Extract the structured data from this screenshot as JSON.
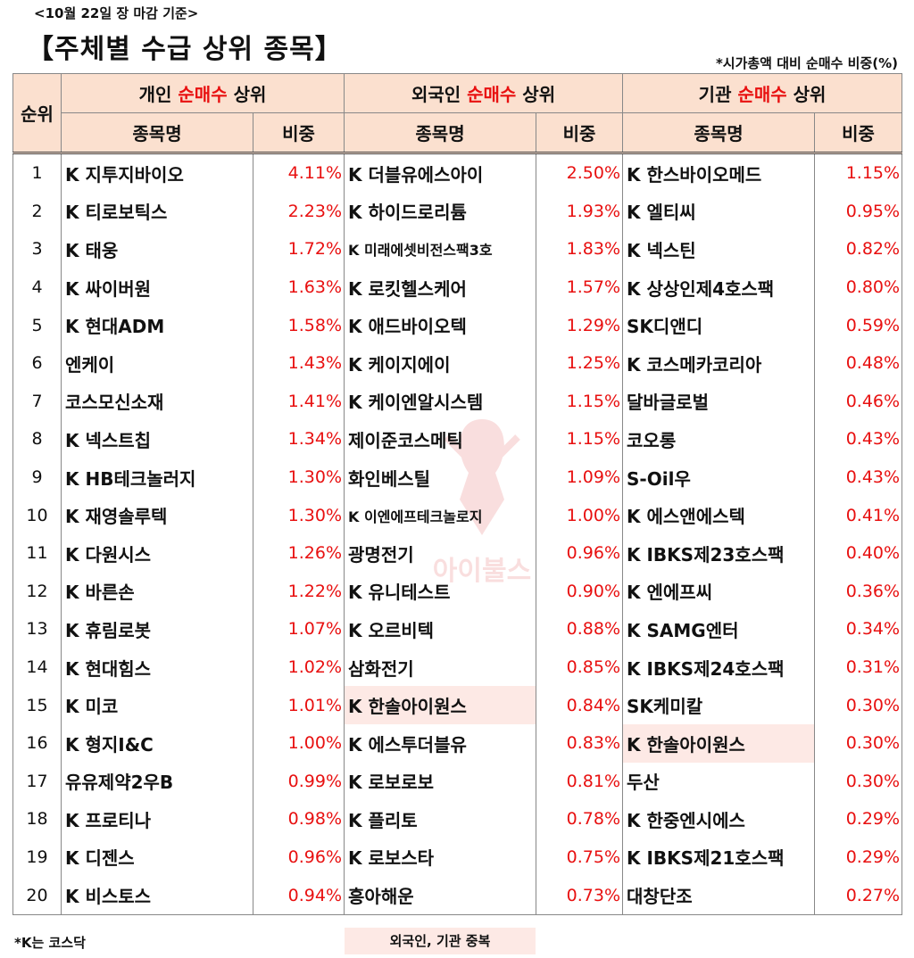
{
  "date_label": "<10월 22일 장 마감 기준>",
  "title": "【주체별 수급 상위 종목】",
  "note": "*시가총액 대비 순매수 비중(%)",
  "header": {
    "rank": "순위",
    "groups": [
      {
        "prefix": "개인 ",
        "highlight": "순매수",
        "suffix": " 상위"
      },
      {
        "prefix": "외국인 ",
        "highlight": "순매수",
        "suffix": " 상위"
      },
      {
        "prefix": "기관 ",
        "highlight": "순매수",
        "suffix": " 상위"
      }
    ],
    "name_col": "종목명",
    "pct_col": "비중"
  },
  "rows": [
    {
      "rank": "1",
      "p": [
        "K 지투지바이오",
        "4.11%"
      ],
      "f": [
        "K 더블유에스아이",
        "2.50%"
      ],
      "i": [
        "K 한스바이오메드",
        "1.15%"
      ]
    },
    {
      "rank": "2",
      "p": [
        "K 티로보틱스",
        "2.23%"
      ],
      "f": [
        "K 하이드로리튬",
        "1.93%"
      ],
      "i": [
        "K 엘티씨",
        "0.95%"
      ]
    },
    {
      "rank": "3",
      "p": [
        "K 태웅",
        "1.72%"
      ],
      "f": [
        "K 미래에셋비전스팩3호",
        "1.83%"
      ],
      "i": [
        "K 넥스틴",
        "0.82%"
      ]
    },
    {
      "rank": "4",
      "p": [
        "K 싸이버원",
        "1.63%"
      ],
      "f": [
        "K 로킷헬스케어",
        "1.57%"
      ],
      "i": [
        "K 상상인제4호스팩",
        "0.80%"
      ]
    },
    {
      "rank": "5",
      "p": [
        "K 현대ADM",
        "1.58%"
      ],
      "f": [
        "K 애드바이오텍",
        "1.29%"
      ],
      "i": [
        "SK디앤디",
        "0.59%"
      ]
    },
    {
      "rank": "6",
      "p": [
        "엔케이",
        "1.43%"
      ],
      "f": [
        "K 케이지에이",
        "1.25%"
      ],
      "i": [
        "K 코스메카코리아",
        "0.48%"
      ]
    },
    {
      "rank": "7",
      "p": [
        "코스모신소재",
        "1.41%"
      ],
      "f": [
        "K 케이엔알시스템",
        "1.15%"
      ],
      "i": [
        "달바글로벌",
        "0.46%"
      ]
    },
    {
      "rank": "8",
      "p": [
        "K 넥스트칩",
        "1.34%"
      ],
      "f": [
        "제이준코스메틱",
        "1.15%"
      ],
      "i": [
        "코오롱",
        "0.43%"
      ]
    },
    {
      "rank": "9",
      "p": [
        "K HB테크놀러지",
        "1.30%"
      ],
      "f": [
        "화인베스틸",
        "1.09%"
      ],
      "i": [
        "S-Oil우",
        "0.43%"
      ]
    },
    {
      "rank": "10",
      "p": [
        "K 재영솔루텍",
        "1.30%"
      ],
      "f": [
        "K 이엔에프테크놀로지",
        "1.00%"
      ],
      "i": [
        "K 에스앤에스텍",
        "0.41%"
      ]
    },
    {
      "rank": "11",
      "p": [
        "K 다원시스",
        "1.26%"
      ],
      "f": [
        "광명전기",
        "0.96%"
      ],
      "i": [
        "K IBKS제23호스팩",
        "0.40%"
      ]
    },
    {
      "rank": "12",
      "p": [
        "K 바른손",
        "1.22%"
      ],
      "f": [
        "K 유니테스트",
        "0.90%"
      ],
      "i": [
        "K 엔에프씨",
        "0.36%"
      ]
    },
    {
      "rank": "13",
      "p": [
        "K 휴림로봇",
        "1.07%"
      ],
      "f": [
        "K 오르비텍",
        "0.88%"
      ],
      "i": [
        "K SAMG엔터",
        "0.34%"
      ]
    },
    {
      "rank": "14",
      "p": [
        "K 현대힘스",
        "1.02%"
      ],
      "f": [
        "삼화전기",
        "0.85%"
      ],
      "i": [
        "K IBKS제24호스팩",
        "0.31%"
      ]
    },
    {
      "rank": "15",
      "p": [
        "K 미코",
        "1.01%"
      ],
      "f": [
        "K 한솔아이원스",
        "0.84%"
      ],
      "i": [
        "SK케미칼",
        "0.30%"
      ]
    },
    {
      "rank": "16",
      "p": [
        "K 형지I&C",
        "1.00%"
      ],
      "f": [
        "K 에스투더블유",
        "0.83%"
      ],
      "i": [
        "K 한솔아이원스",
        "0.30%"
      ]
    },
    {
      "rank": "17",
      "p": [
        "유유제약2우B",
        "0.99%"
      ],
      "f": [
        "K 로보로보",
        "0.81%"
      ],
      "i": [
        "두산",
        "0.30%"
      ]
    },
    {
      "rank": "18",
      "p": [
        "K 프로티나",
        "0.98%"
      ],
      "f": [
        "K 플리토",
        "0.78%"
      ],
      "i": [
        "K 한중엔시에스",
        "0.29%"
      ]
    },
    {
      "rank": "19",
      "p": [
        "K 디젠스",
        "0.96%"
      ],
      "f": [
        "K 로보스타",
        "0.75%"
      ],
      "i": [
        "K IBKS제21호스팩",
        "0.29%"
      ]
    },
    {
      "rank": "20",
      "p": [
        "K 비스토스",
        "0.94%"
      ],
      "f": [
        "흥아해운",
        "0.73%"
      ],
      "i": [
        "대창단조",
        "0.27%"
      ]
    }
  ],
  "footer_left": "*K는 코스닥",
  "footer_mid": "외국인, 기관 중복",
  "watermark": "아이불스",
  "colors": {
    "accent_red": "#e81010",
    "header_bg": "#fbe0cf",
    "dup_bg": "#fde9e5"
  }
}
